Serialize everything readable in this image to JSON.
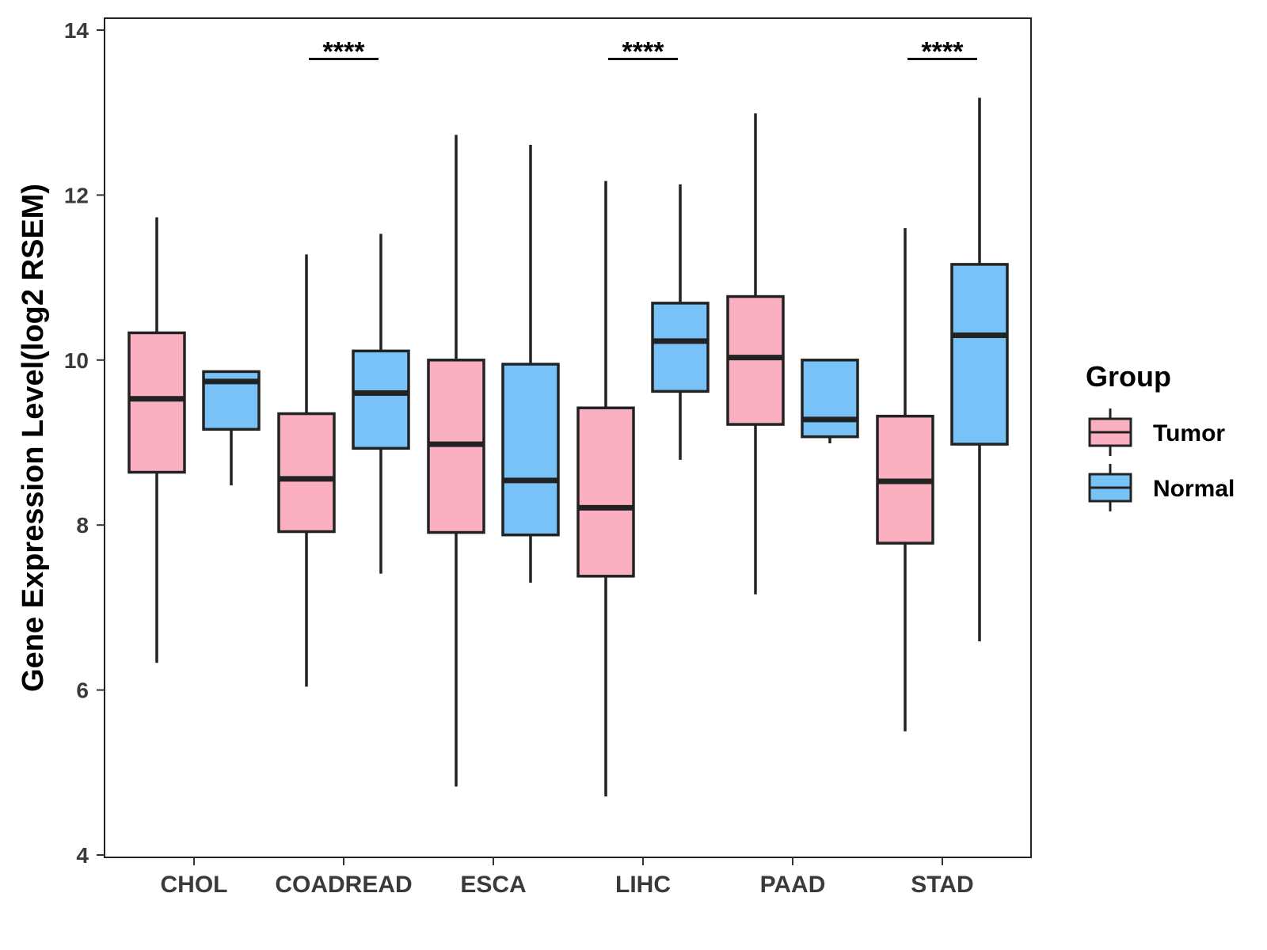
{
  "chart_data": {
    "type": "boxplot",
    "ylabel": "Gene Expression Level(log2 RSEM)",
    "xlabel": "",
    "ylim": [
      4,
      14
    ],
    "yticks": [
      4,
      6,
      8,
      10,
      12,
      14
    ],
    "categories": [
      "CHOL",
      "COADREAD",
      "ESCA",
      "LIHC",
      "PAAD",
      "STAD"
    ],
    "legend": {
      "title": "Group",
      "position": "right",
      "entries": [
        {
          "name": "Tumor",
          "color": "#fbb0c2"
        },
        {
          "name": "Normal",
          "color": "#79c2f8"
        }
      ]
    },
    "series": [
      {
        "name": "Tumor",
        "color": "#fbb0c2",
        "boxes": [
          {
            "category": "CHOL",
            "min": 6.33,
            "q1": 8.64,
            "median": 9.53,
            "q3": 10.33,
            "max": 11.73
          },
          {
            "category": "COADREAD",
            "min": 6.04,
            "q1": 7.92,
            "median": 8.56,
            "q3": 9.35,
            "max": 11.28
          },
          {
            "category": "ESCA",
            "min": 4.83,
            "q1": 7.91,
            "median": 8.98,
            "q3": 10.0,
            "max": 12.73
          },
          {
            "category": "LIHC",
            "min": 4.71,
            "q1": 7.38,
            "median": 8.21,
            "q3": 9.42,
            "max": 12.17
          },
          {
            "category": "PAAD",
            "min": 7.16,
            "q1": 9.22,
            "median": 10.03,
            "q3": 10.77,
            "max": 12.99
          },
          {
            "category": "STAD",
            "min": 5.5,
            "q1": 7.78,
            "median": 8.53,
            "q3": 9.32,
            "max": 11.6
          }
        ]
      },
      {
        "name": "Normal",
        "color": "#79c2f8",
        "boxes": [
          {
            "category": "CHOL",
            "min": 8.48,
            "q1": 9.16,
            "median": 9.74,
            "q3": 9.86,
            "max": 9.86
          },
          {
            "category": "COADREAD",
            "min": 7.41,
            "q1": 8.93,
            "median": 9.6,
            "q3": 10.11,
            "max": 11.53
          },
          {
            "category": "ESCA",
            "min": 7.3,
            "q1": 7.88,
            "median": 8.54,
            "q3": 9.95,
            "max": 12.61
          },
          {
            "category": "LIHC",
            "min": 8.79,
            "q1": 9.62,
            "median": 10.23,
            "q3": 10.69,
            "max": 12.13
          },
          {
            "category": "PAAD",
            "min": 8.99,
            "q1": 9.07,
            "median": 9.28,
            "q3": 10.0,
            "max": 10.0
          },
          {
            "category": "STAD",
            "min": 6.59,
            "q1": 8.98,
            "median": 10.3,
            "q3": 11.16,
            "max": 13.18
          }
        ]
      }
    ],
    "annotations": [
      {
        "category": "COADREAD",
        "label": "****",
        "y": 13.65
      },
      {
        "category": "LIHC",
        "label": "****",
        "y": 13.65
      },
      {
        "category": "STAD",
        "label": "****",
        "y": 13.65
      }
    ],
    "grid": false
  }
}
